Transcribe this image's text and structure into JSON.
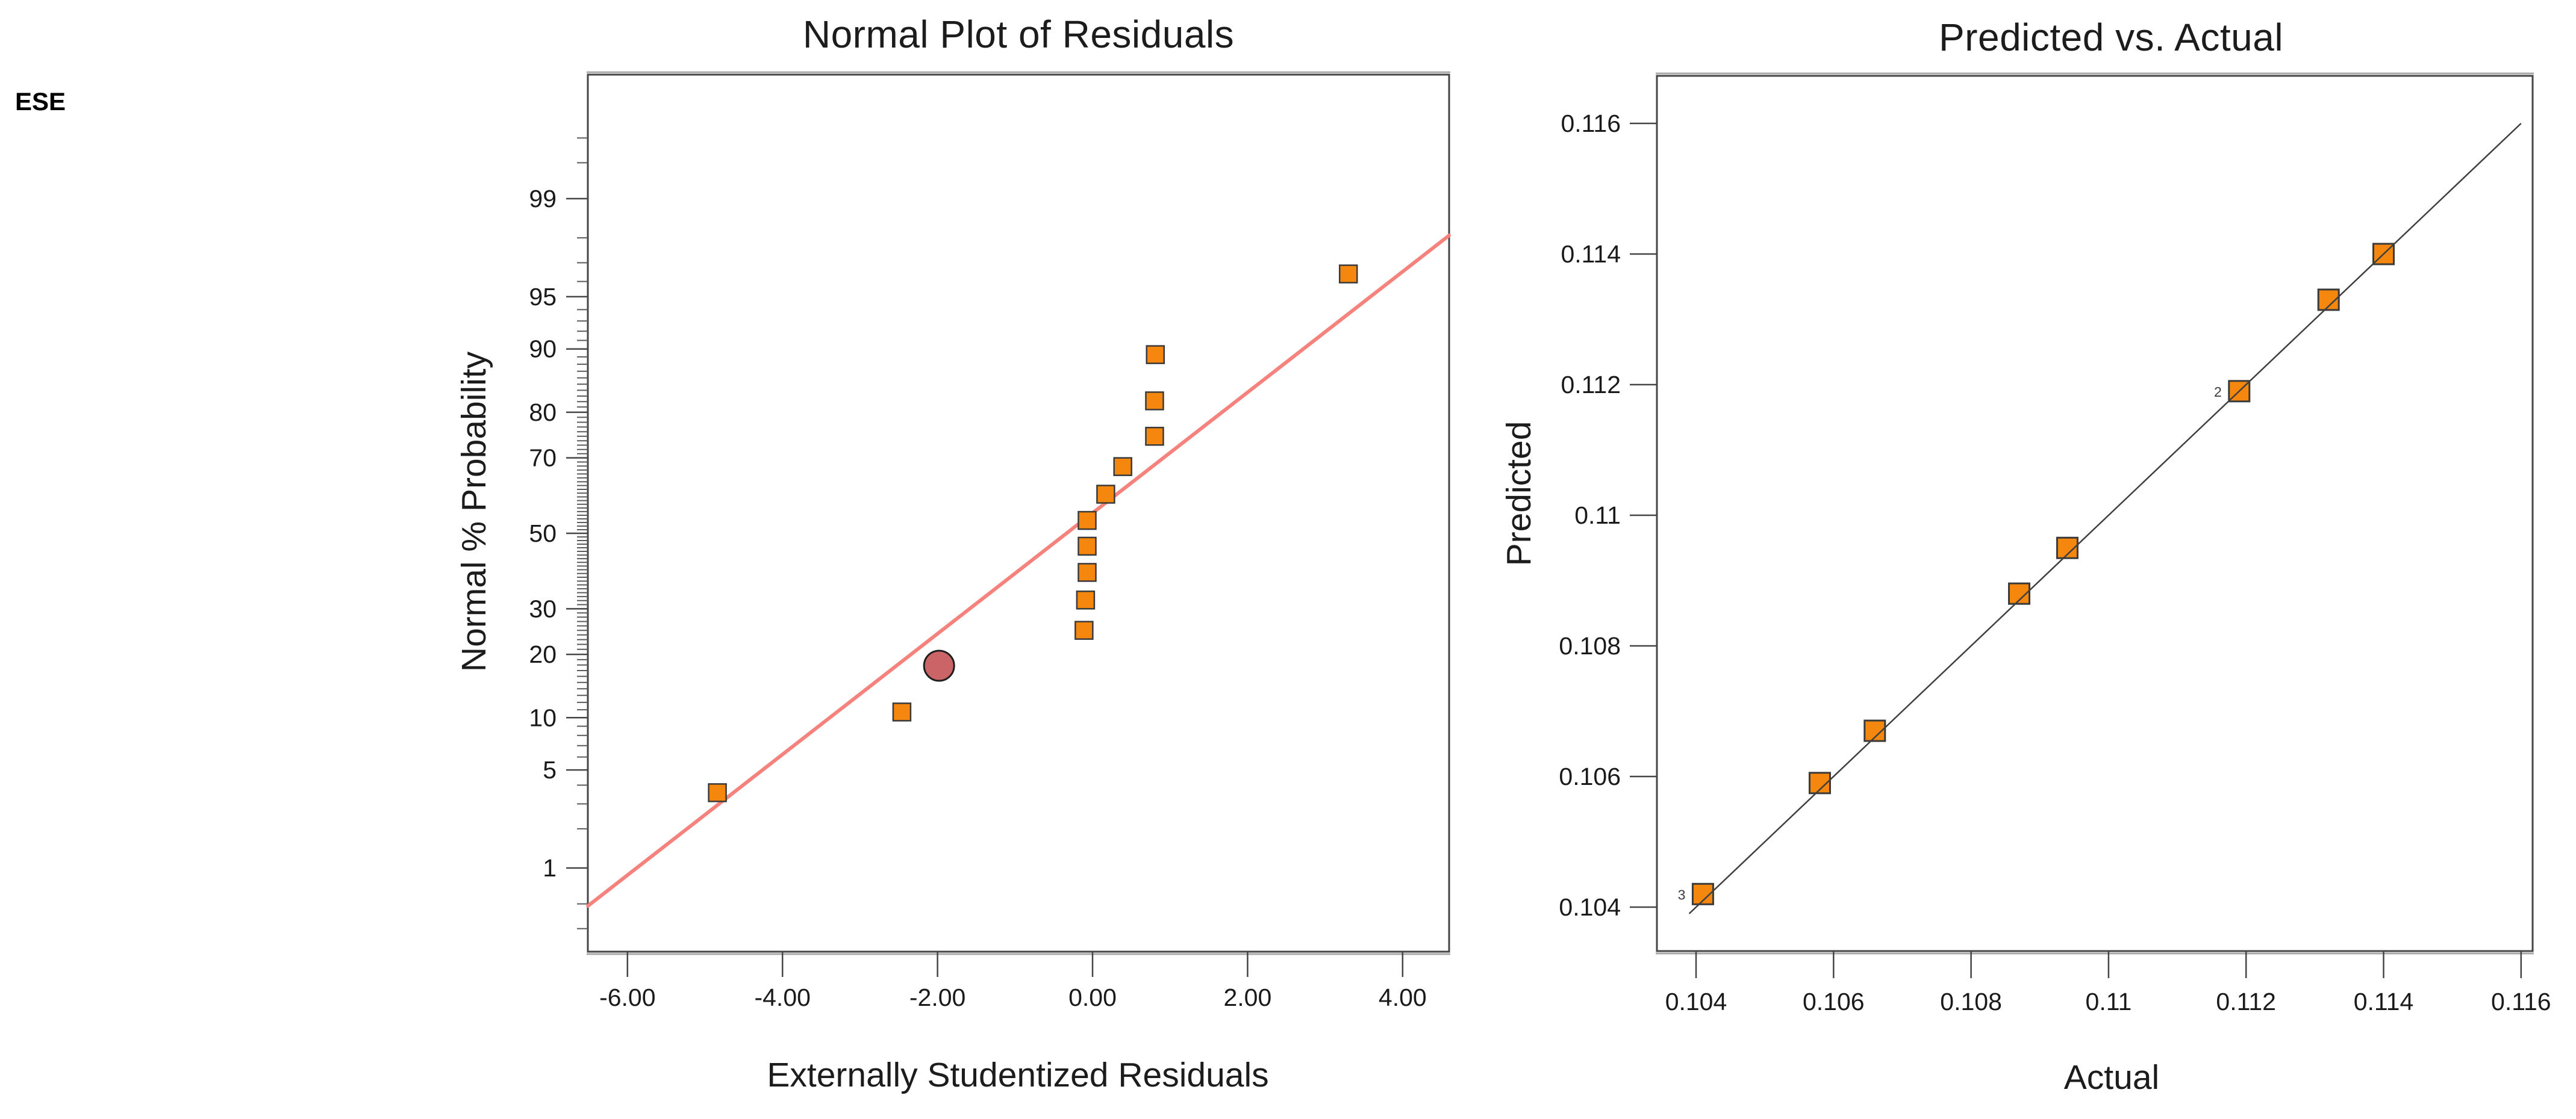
{
  "page": {
    "corner_label": "ESE",
    "background": "#ffffff"
  },
  "colors": {
    "marker_fill": "#F5870F",
    "marker_stroke": "#3A3A3A",
    "highlight_fill": "#CA6467",
    "highlight_stroke": "#1E1E1E",
    "trend_line": "#F5827C",
    "identity_line": "#3F3F3F",
    "axis_line": "#454545",
    "axis_shadow": "#A9A9A9",
    "tick_text": "#1A1A1A",
    "annotation_text": "#3C3C3C"
  },
  "chart_data": [
    {
      "type": "scatter",
      "title": "Normal Plot of Residuals",
      "xlabel": "Externally Studentized Residuals",
      "ylabel": "Normal % Probability",
      "x_scale": "linear",
      "y_scale": "normal-probability",
      "xlim": [
        -6.55,
        4.6
      ],
      "x_ticks": [
        -6,
        -4,
        -2,
        0,
        2,
        4
      ],
      "x_tick_labels": [
        "-6.00",
        "-4.00",
        "-2.00",
        "0.00",
        "2.00",
        "4.00"
      ],
      "y_ticks": [
        1,
        5,
        10,
        20,
        30,
        50,
        70,
        80,
        90,
        95,
        99
      ],
      "y_tick_labels": [
        "1",
        "5",
        "10",
        "20",
        "30",
        "50",
        "70",
        "80",
        "90",
        "95",
        "99"
      ],
      "y_minor_ticks": [
        0.3,
        0.5,
        2,
        3,
        4,
        6,
        7,
        8,
        9,
        11,
        12,
        13,
        14,
        15,
        16,
        17,
        18,
        19,
        21,
        22,
        23,
        24,
        25,
        26,
        27,
        28,
        29,
        31,
        32,
        33,
        34,
        35,
        36,
        37,
        38,
        39,
        40,
        41,
        42,
        43,
        44,
        45,
        46,
        47,
        48,
        49,
        51,
        52,
        53,
        54,
        55,
        56,
        57,
        58,
        59,
        60,
        61,
        62,
        63,
        64,
        65,
        66,
        67,
        68,
        69,
        71,
        72,
        73,
        74,
        75,
        76,
        77,
        78,
        79,
        81,
        82,
        83,
        84,
        85,
        86,
        87,
        88,
        89,
        91,
        92,
        93,
        94,
        96,
        97,
        98,
        99.5,
        99.7
      ],
      "grid": false,
      "legend": "none",
      "points": [
        {
          "x": -4.84,
          "p": 3.57,
          "highlighted": false
        },
        {
          "x": -2.46,
          "p": 10.71,
          "highlighted": false
        },
        {
          "x": -1.98,
          "p": 17.86,
          "highlighted": true
        },
        {
          "x": -0.11,
          "p": 25.0,
          "highlighted": false
        },
        {
          "x": -0.09,
          "p": 32.14,
          "highlighted": false
        },
        {
          "x": -0.07,
          "p": 39.29,
          "highlighted": false
        },
        {
          "x": -0.07,
          "p": 46.43,
          "highlighted": false
        },
        {
          "x": -0.07,
          "p": 53.57,
          "highlighted": false
        },
        {
          "x": 0.17,
          "p": 60.71,
          "highlighted": false
        },
        {
          "x": 0.39,
          "p": 67.86,
          "highlighted": false
        },
        {
          "x": 0.8,
          "p": 75.0,
          "highlighted": false
        },
        {
          "x": 0.8,
          "p": 82.14,
          "highlighted": false
        },
        {
          "x": 0.81,
          "p": 89.29,
          "highlighted": false
        },
        {
          "x": 3.3,
          "p": 96.43,
          "highlighted": false
        }
      ],
      "trend_line": {
        "x1": -6.51,
        "p1": 0.48,
        "x2": 4.6,
        "p2": 98.08
      }
    },
    {
      "type": "scatter",
      "title": "Predicted vs. Actual",
      "xlabel": "Actual",
      "ylabel": "Predicted",
      "x_scale": "linear",
      "y_scale": "linear",
      "xlim": [
        0.10343,
        0.11617
      ],
      "ylim": [
        0.10332,
        0.11673
      ],
      "x_ticks": [
        0.104,
        0.106,
        0.108,
        0.11,
        0.112,
        0.114,
        0.116
      ],
      "x_tick_labels": [
        "0.104",
        "0.106",
        "0.108",
        "0.11",
        "0.112",
        "0.114",
        "0.116"
      ],
      "y_ticks": [
        0.104,
        0.106,
        0.108,
        0.11,
        0.112,
        0.114,
        0.116
      ],
      "y_tick_labels": [
        "0.104",
        "0.106",
        "0.108",
        "0.11",
        "0.112",
        "0.114",
        "0.116"
      ],
      "grid": false,
      "legend": "none",
      "points": [
        {
          "x": 0.1041,
          "y": 0.1042,
          "count_label": "3"
        },
        {
          "x": 0.1058,
          "y": 0.1059,
          "count_label": ""
        },
        {
          "x": 0.1066,
          "y": 0.1067,
          "count_label": ""
        },
        {
          "x": 0.1087,
          "y": 0.1088,
          "count_label": ""
        },
        {
          "x": 0.1094,
          "y": 0.1095,
          "count_label": ""
        },
        {
          "x": 0.1119,
          "y": 0.1119,
          "count_label": "2"
        },
        {
          "x": 0.1132,
          "y": 0.1133,
          "count_label": ""
        },
        {
          "x": 0.114,
          "y": 0.114,
          "count_label": ""
        }
      ],
      "identity_line": {
        "from": 0.1039,
        "to": 0.116
      }
    }
  ]
}
